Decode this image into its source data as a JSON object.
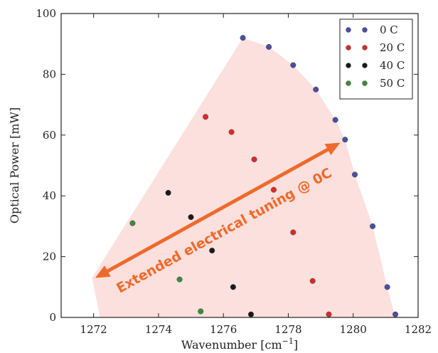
{
  "chart_data": {
    "type": "scatter",
    "xlabel": "Wavenumber [cm",
    "xlabel_superscript": "−1",
    "xlabel_suffix": "]",
    "ylabel": "Optical Power [mW]",
    "xlim": [
      1271,
      1282
    ],
    "ylim": [
      0,
      100
    ],
    "xticks": [
      1272,
      1274,
      1276,
      1278,
      1280,
      1282
    ],
    "yticks": [
      0,
      20,
      40,
      60,
      80,
      100
    ],
    "grid": false,
    "legend_position": "top-right",
    "series": [
      {
        "name": "0 C",
        "color": "#4a4fa3",
        "points": [
          [
            1276.6,
            92
          ],
          [
            1277.4,
            89
          ],
          [
            1278.15,
            83
          ],
          [
            1278.85,
            75
          ],
          [
            1279.45,
            65
          ],
          [
            1279.75,
            58.5
          ],
          [
            1280.05,
            47
          ],
          [
            1280.6,
            30
          ],
          [
            1281.05,
            10
          ],
          [
            1281.3,
            1
          ]
        ]
      },
      {
        "name": "20 C",
        "color": "#d62c2c",
        "points": [
          [
            1275.45,
            66
          ],
          [
            1276.25,
            61
          ],
          [
            1276.95,
            52
          ],
          [
            1277.55,
            42
          ],
          [
            1278.15,
            28
          ],
          [
            1278.75,
            12
          ],
          [
            1279.25,
            1
          ]
        ]
      },
      {
        "name": "40 C",
        "color": "#1a1a1a",
        "points": [
          [
            1274.3,
            41
          ],
          [
            1275.0,
            33
          ],
          [
            1275.65,
            22
          ],
          [
            1276.3,
            10
          ],
          [
            1276.85,
            1
          ]
        ]
      },
      {
        "name": "50 C",
        "color": "#3d8a3d",
        "points": [
          [
            1273.2,
            31
          ],
          [
            1274.65,
            12.5
          ],
          [
            1275.3,
            2
          ]
        ]
      }
    ],
    "shaded_region": {
      "color": "#fbe0dd",
      "polygon": [
        [
          1272.2,
          0
        ],
        [
          1271.95,
          13
        ],
        [
          1276.6,
          92
        ],
        [
          1277.4,
          89
        ],
        [
          1278.15,
          83
        ],
        [
          1278.85,
          75
        ],
        [
          1279.45,
          65
        ],
        [
          1279.75,
          58.5
        ],
        [
          1280.05,
          47
        ],
        [
          1280.6,
          30
        ],
        [
          1281.05,
          10
        ],
        [
          1281.3,
          0
        ]
      ]
    },
    "annotation": {
      "text": "Extended electrical tuning @ 0C",
      "color": "#ee6a2c",
      "arrow_from": [
        1272.05,
        13
      ],
      "arrow_to": [
        1279.6,
        57.5
      ]
    }
  }
}
